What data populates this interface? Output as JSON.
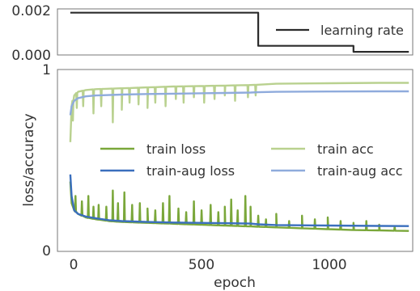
{
  "chart_data": [
    {
      "type": "line",
      "xlim": [
        -50,
        1330
      ],
      "ylim": [
        0,
        0.002
      ],
      "y_ticks": [
        "0.002",
        "0.000"
      ],
      "grid": false,
      "legend_placement": "top-right",
      "series": [
        {
          "name": "learning rate",
          "color": "#2b2b2b",
          "x": [
            0,
            730,
            730,
            1100,
            1100,
            1315
          ],
          "y": [
            0.0019,
            0.0019,
            0.00035,
            0.00035,
            7e-05,
            7e-05
          ]
        }
      ]
    },
    {
      "type": "line",
      "xlabel": "epoch",
      "ylabel": "loss/accuracy",
      "xlim": [
        -50,
        1330
      ],
      "ylim": [
        0,
        1
      ],
      "x_ticks": [
        "0",
        "500",
        "1000"
      ],
      "x_tick_values": [
        0,
        500,
        1000
      ],
      "y_ticks": [
        "1",
        "0"
      ],
      "y_tick_values": [
        1,
        0
      ],
      "grid": false,
      "legend_placement": "center",
      "series": [
        {
          "name": "train loss",
          "color": "#7aa73a",
          "x": [
            0,
            5,
            15,
            30,
            60,
            100,
            150,
            200,
            300,
            400,
            500,
            600,
            700,
            800,
            900,
            1000,
            1100,
            1200,
            1315
          ],
          "y": [
            0.38,
            0.26,
            0.22,
            0.2,
            0.18,
            0.17,
            0.16,
            0.155,
            0.15,
            0.145,
            0.14,
            0.135,
            0.13,
            0.125,
            0.12,
            0.115,
            0.11,
            0.108,
            0.105
          ],
          "spikes": [
            [
              20,
              0.3
            ],
            [
              45,
              0.27
            ],
            [
              70,
              0.3
            ],
            [
              90,
              0.24
            ],
            [
              110,
              0.25
            ],
            [
              140,
              0.24
            ],
            [
              165,
              0.33
            ],
            [
              185,
              0.26
            ],
            [
              210,
              0.32
            ],
            [
              240,
              0.25
            ],
            [
              270,
              0.26
            ],
            [
              300,
              0.23
            ],
            [
              330,
              0.22
            ],
            [
              360,
              0.26
            ],
            [
              385,
              0.3
            ],
            [
              420,
              0.23
            ],
            [
              450,
              0.21
            ],
            [
              480,
              0.27
            ],
            [
              510,
              0.22
            ],
            [
              545,
              0.25
            ],
            [
              575,
              0.21
            ],
            [
              600,
              0.24
            ],
            [
              625,
              0.28
            ],
            [
              650,
              0.22
            ],
            [
              680,
              0.3
            ],
            [
              700,
              0.24
            ],
            [
              730,
              0.19
            ],
            [
              760,
              0.17
            ],
            [
              800,
              0.2
            ],
            [
              850,
              0.16
            ],
            [
              900,
              0.19
            ],
            [
              950,
              0.17
            ],
            [
              1000,
              0.18
            ],
            [
              1050,
              0.16
            ],
            [
              1100,
              0.15
            ],
            [
              1150,
              0.16
            ],
            [
              1200,
              0.14
            ],
            [
              1260,
              0.13
            ]
          ]
        },
        {
          "name": "train-aug loss",
          "color": "#3a6fbd",
          "x": [
            0,
            5,
            15,
            30,
            60,
            100,
            150,
            200,
            300,
            400,
            500,
            600,
            700,
            730,
            800,
            1000,
            1200,
            1315
          ],
          "y": [
            0.42,
            0.3,
            0.22,
            0.2,
            0.185,
            0.175,
            0.165,
            0.16,
            0.155,
            0.152,
            0.15,
            0.148,
            0.146,
            0.142,
            0.138,
            0.135,
            0.133,
            0.132
          ]
        },
        {
          "name": "train acc",
          "color": "#b9d18f",
          "x": [
            0,
            5,
            15,
            30,
            60,
            100,
            200,
            300,
            400,
            500,
            600,
            700,
            730,
            800,
            1000,
            1200,
            1315
          ],
          "y": [
            0.6,
            0.8,
            0.86,
            0.88,
            0.89,
            0.895,
            0.9,
            0.905,
            0.91,
            0.912,
            0.915,
            0.918,
            0.92,
            0.925,
            0.928,
            0.93,
            0.93
          ],
          "dips": [
            [
              10,
              0.72
            ],
            [
              25,
              0.79
            ],
            [
              50,
              0.8
            ],
            [
              90,
              0.76
            ],
            [
              120,
              0.8
            ],
            [
              165,
              0.71
            ],
            [
              200,
              0.78
            ],
            [
              230,
              0.82
            ],
            [
              265,
              0.81
            ],
            [
              300,
              0.79
            ],
            [
              330,
              0.82
            ],
            [
              370,
              0.8
            ],
            [
              410,
              0.84
            ],
            [
              440,
              0.82
            ],
            [
              480,
              0.85
            ],
            [
              520,
              0.82
            ],
            [
              560,
              0.84
            ],
            [
              600,
              0.86
            ],
            [
              640,
              0.83
            ],
            [
              690,
              0.85
            ],
            [
              720,
              0.86
            ]
          ]
        },
        {
          "name": "train-aug acc",
          "color": "#8fabdc",
          "x": [
            0,
            5,
            15,
            30,
            60,
            100,
            200,
            300,
            400,
            500,
            600,
            700,
            730,
            800,
            1000,
            1200,
            1315
          ],
          "y": [
            0.75,
            0.8,
            0.83,
            0.845,
            0.855,
            0.86,
            0.865,
            0.868,
            0.87,
            0.872,
            0.874,
            0.876,
            0.878,
            0.88,
            0.882,
            0.883,
            0.883
          ]
        }
      ]
    }
  ]
}
